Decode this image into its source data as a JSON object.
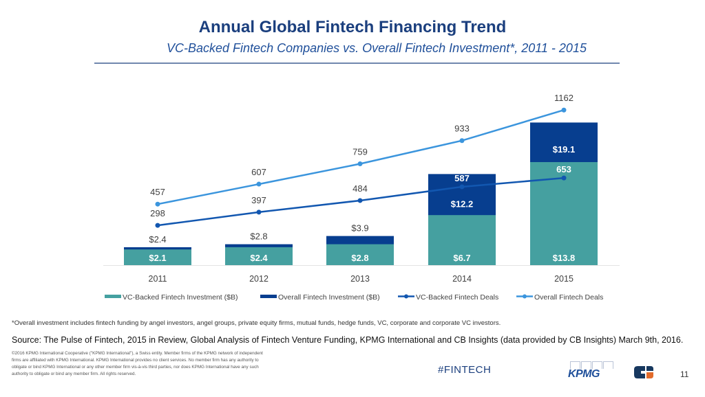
{
  "header": {
    "title": "Annual Global Fintech Financing Trend",
    "subtitle": "VC-Backed Fintech Companies vs. Overall Fintech Investment*, 2011 - 2015"
  },
  "chart_data": {
    "type": "bar",
    "subtype": "stacked bar with line overlay",
    "title": "Annual Global Fintech Financing Trend",
    "subtitle": "VC-Backed Fintech Companies vs. Overall Fintech Investment*, 2011 - 2015",
    "categories": [
      "2011",
      "2012",
      "2013",
      "2014",
      "2015"
    ],
    "bar_series": [
      {
        "name": "VC-Backed Fintech Investment  ($B)",
        "values": [
          2.1,
          2.4,
          2.8,
          6.7,
          13.8
        ],
        "labels": [
          "$2.1",
          "$2.4",
          "$2.8",
          "$6.7",
          "$13.8"
        ],
        "color": "#45a0a0"
      },
      {
        "name": "Overall Fintech Investment ($B)",
        "values": [
          2.4,
          2.8,
          3.9,
          12.2,
          19.1
        ],
        "labels": [
          "$2.4",
          "$2.8",
          "$3.9",
          "$12.2",
          "$19.1"
        ],
        "color": "#073e8f"
      }
    ],
    "line_series": [
      {
        "name": "VC-Backed Fintech Deals",
        "values": [
          298,
          397,
          484,
          587,
          653
        ],
        "color": "#1257b0"
      },
      {
        "name": "Overall Fintech Deals",
        "values": [
          457,
          607,
          759,
          933,
          1162
        ],
        "color": "#3b95dd"
      }
    ],
    "xlabel": "",
    "ylabel": "",
    "bar_ylim": [
      0,
      35
    ],
    "line_ylim": [
      0,
      1980
    ],
    "grid": false,
    "legend_position": "bottom"
  },
  "footer": {
    "footnote": "*Overall investment includes fintech funding by angel investors, angel groups, private equity firms, mutual funds, hedge funds, VC, corporate and corporate VC investors.",
    "source": "Source: The Pulse of Fintech, 2015 in Review, Global Analysis of Fintech Venture Funding, KPMG International and CB Insights (data provided by CB Insights) March 9th, 2016.",
    "legal": "©2016 KPMG International Cooperative (\"KPMG International\"), a Swiss entity. Member firms of the KPMG network of independent firms are affiliated with KPMG International. KPMG International provides no client services. No member firm has any authority to obligate or bind KPMG International or any other member firm vis-à-vis third parties, nor does KPMG International have any such authority to obligate or bind any member firm. All rights reserved.",
    "hashtag": "#FINTECH",
    "kpmg_logo": "KPMG",
    "cb_logo_icon": "cb-insights-logo-icon",
    "page_number": "11"
  }
}
